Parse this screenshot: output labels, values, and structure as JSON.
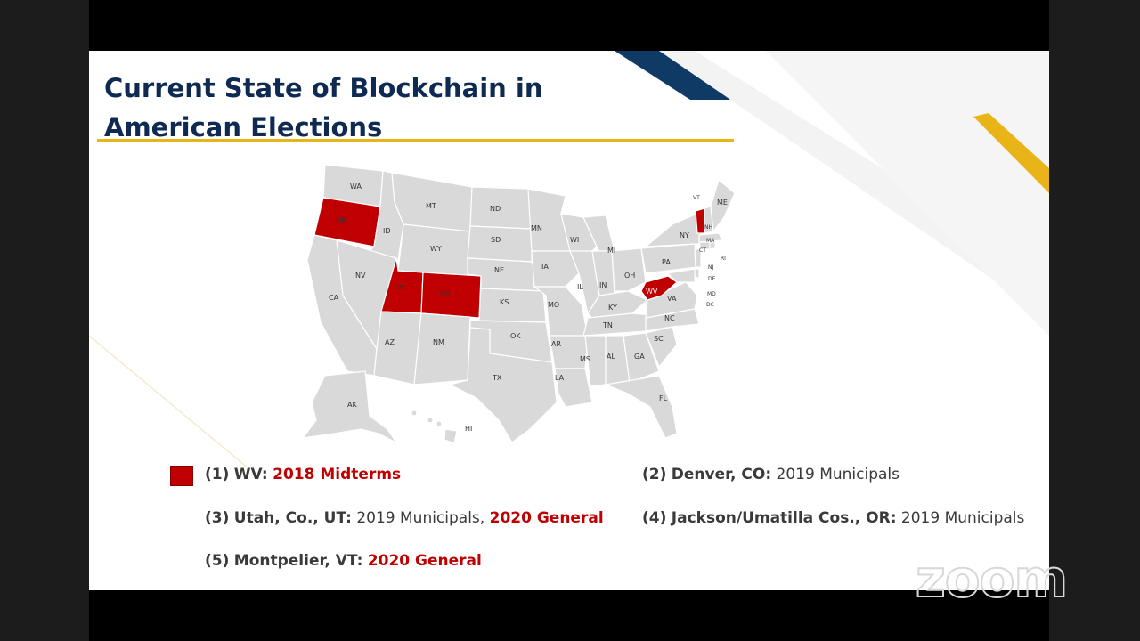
{
  "slide": {
    "title_line1": "Current State of Blockchain in",
    "title_line2": "American Elections",
    "colors": {
      "title": "#0f2a52",
      "accent_gold": "#e8b417",
      "accent_navy": "#0f3a66",
      "highlight_red": "#c00000",
      "map_gray": "#d9d9d9"
    }
  },
  "map": {
    "highlighted_states": [
      "OR",
      "UT",
      "CO",
      "WV",
      "VT"
    ],
    "labels": {
      "WA": "WA",
      "OR": "OR",
      "ID": "ID",
      "MT": "MT",
      "WY": "WY",
      "ND": "ND",
      "SD": "SD",
      "NE": "NE",
      "NV": "NV",
      "CA": "CA",
      "UT": "UT",
      "CO": "CO",
      "KS": "KS",
      "AZ": "AZ",
      "NM": "NM",
      "OK": "OK",
      "TX": "TX",
      "MN": "MN",
      "IA": "IA",
      "MO": "MO",
      "AR": "AR",
      "LA": "LA",
      "WI": "WI",
      "IL": "IL",
      "MI": "MI",
      "IN": "IN",
      "OH": "OH",
      "KY": "KY",
      "TN": "TN",
      "MS": "MS",
      "AL": "AL",
      "GA": "GA",
      "FL": "FL",
      "SC": "SC",
      "NC": "NC",
      "VA": "VA",
      "WV": "WV",
      "PA": "PA",
      "NY": "NY",
      "VT": "VT",
      "NH": "NH",
      "ME": "ME",
      "MA": "MA",
      "RI": "RI",
      "CT": "CT",
      "NJ": "NJ",
      "DE": "DE",
      "MD": "MD",
      "DC": "DC",
      "AK": "AK",
      "HI": "HI"
    }
  },
  "legend": {
    "items": [
      {
        "num": "(1)",
        "place": "WV:",
        "parts": [
          {
            "text": "2018 Midterms",
            "red": true
          }
        ]
      },
      {
        "num": "(2)",
        "place": "Denver, CO:",
        "parts": [
          {
            "text": "2019 Municipals",
            "red": false
          }
        ]
      },
      {
        "num": "(3)",
        "place": "Utah, Co., UT:",
        "parts": [
          {
            "text": "2019 Municipals,",
            "red": false
          },
          {
            "text": "2020 General",
            "red": true
          }
        ]
      },
      {
        "num": "(4)",
        "place": "Jackson/Umatilla Cos., OR:",
        "parts": [
          {
            "text": "2019 Municipals",
            "red": false
          }
        ]
      },
      {
        "num": "(5)",
        "place": "Montpelier, VT:",
        "parts": [
          {
            "text": "2020 General",
            "red": true
          }
        ]
      }
    ]
  },
  "watermark": {
    "logo_text": "zoom"
  }
}
